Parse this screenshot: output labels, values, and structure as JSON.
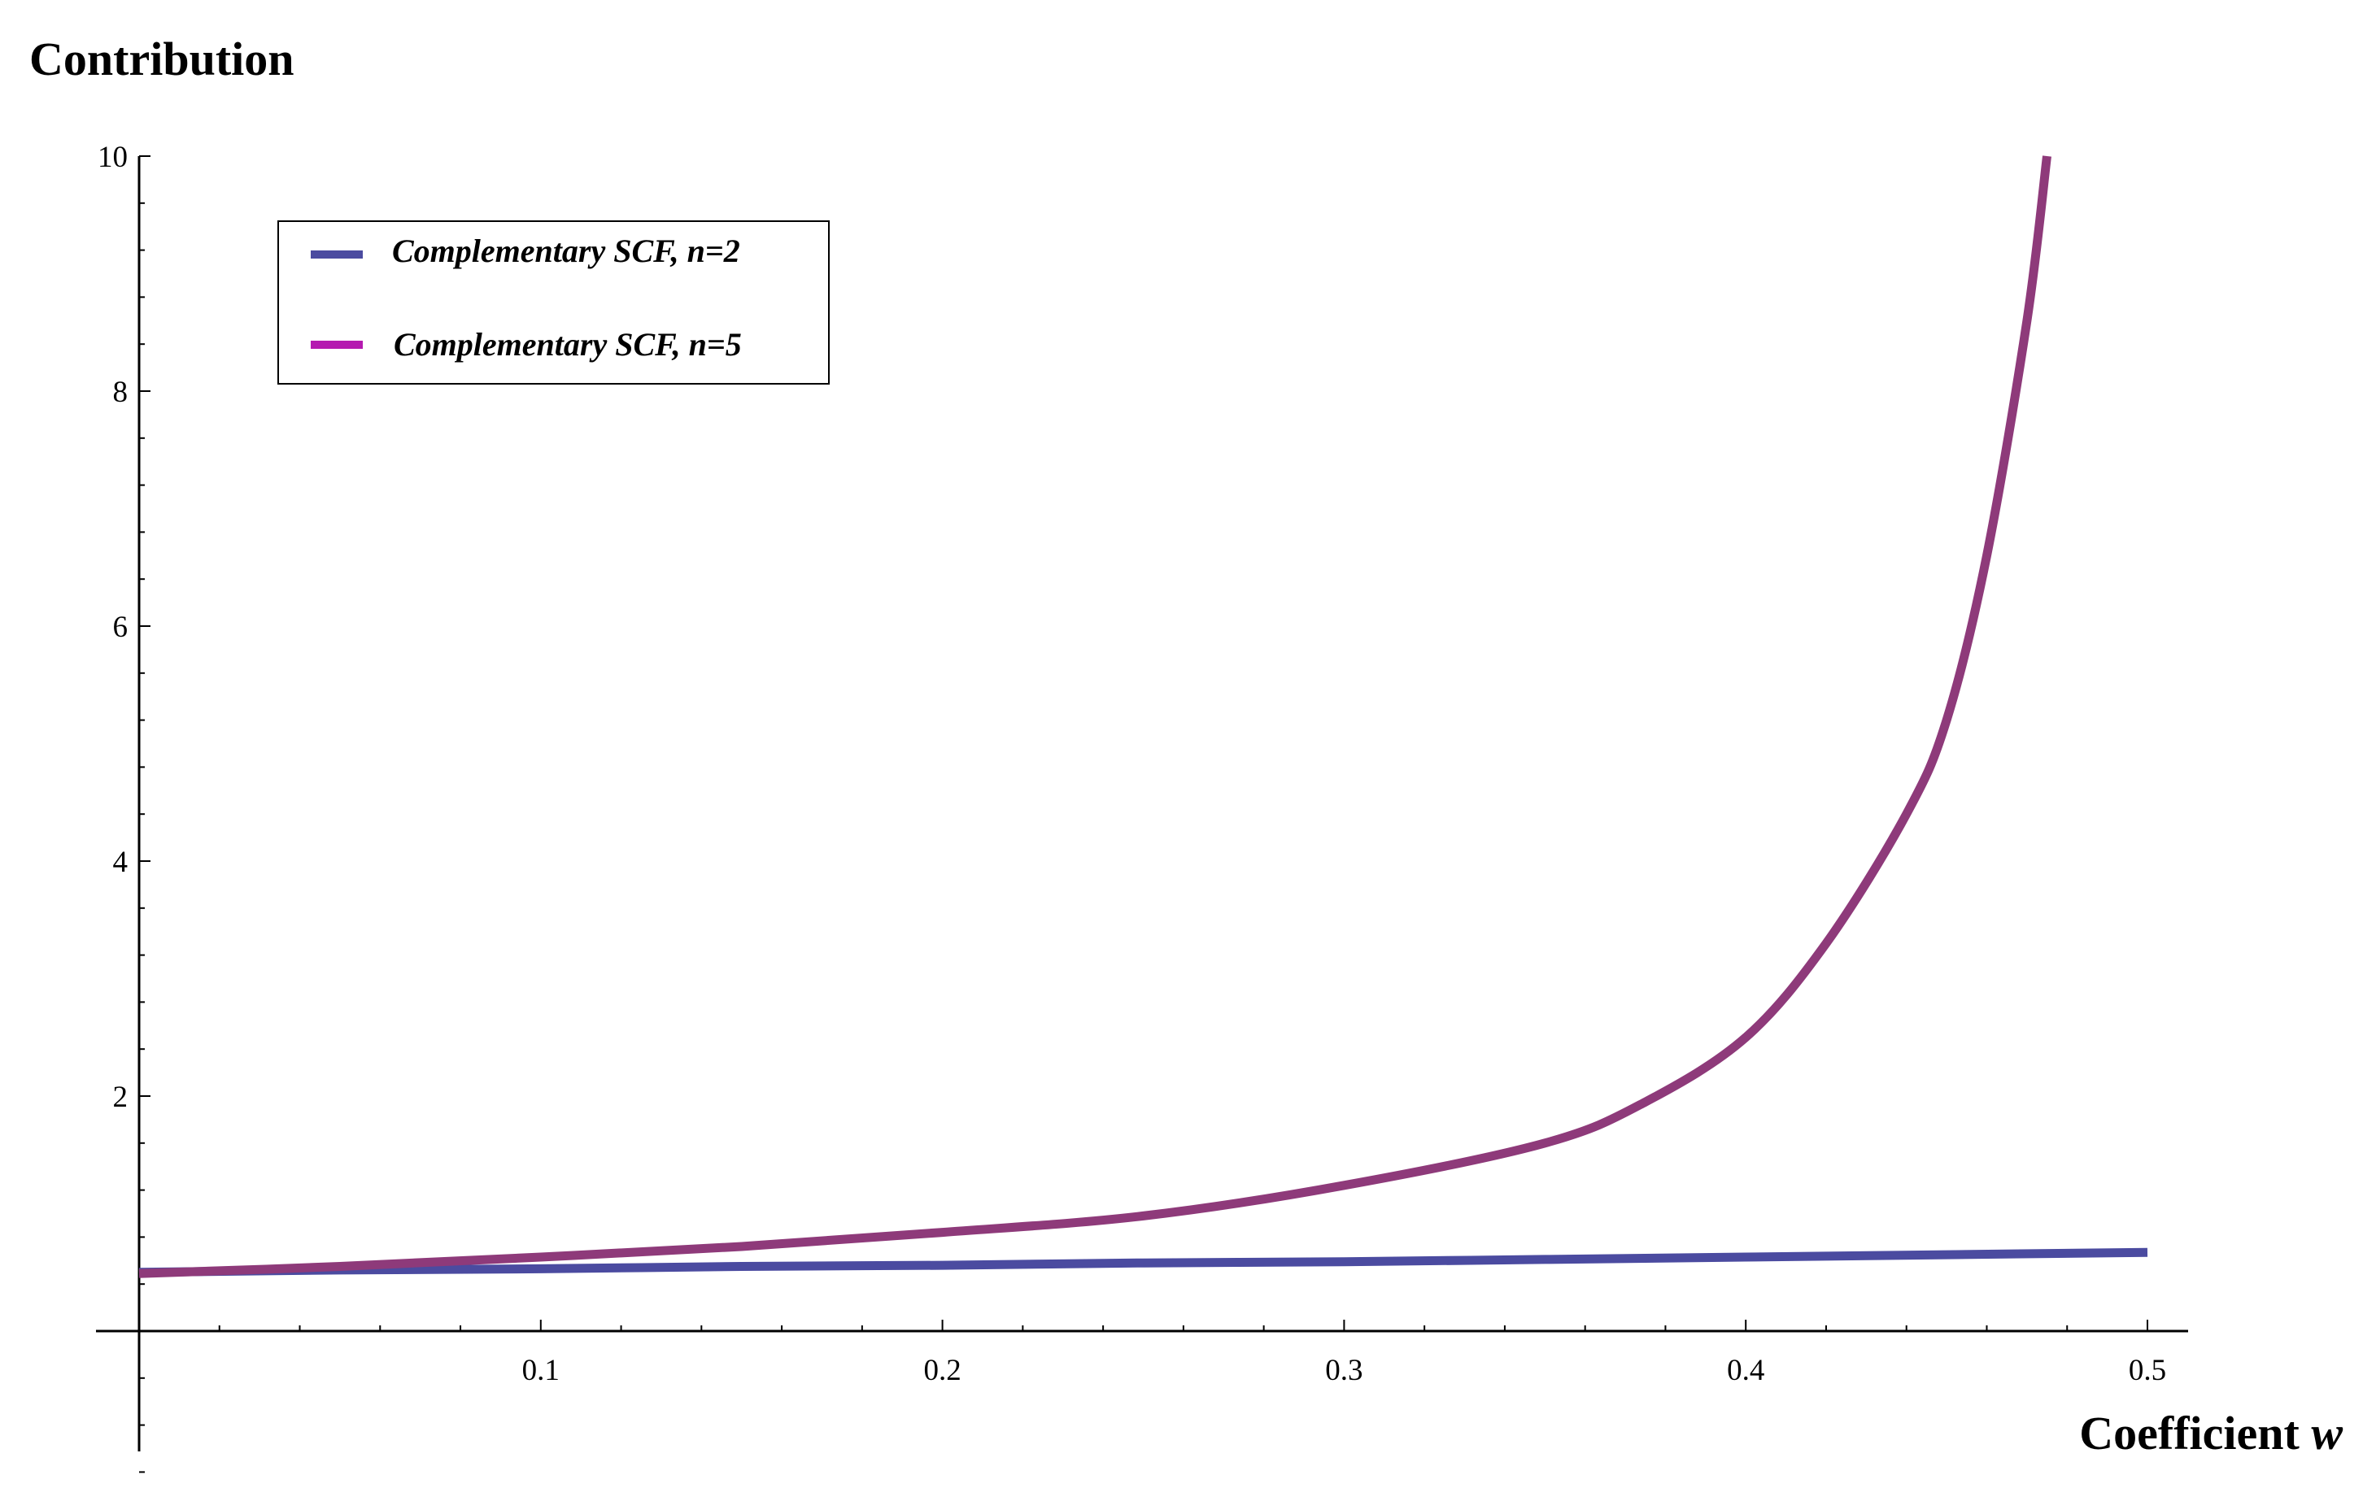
{
  "chart_data": {
    "type": "line",
    "title": "",
    "xlabel": "Coefficient",
    "xlabel_var": "w",
    "ylabel": "Contribution",
    "xlim": [
      0,
      0.5
    ],
    "ylim": [
      0,
      10
    ],
    "x_ticks": [
      "0.1",
      "0.2",
      "0.3",
      "0.4",
      "0.5"
    ],
    "y_ticks": [
      "2",
      "4",
      "6",
      "8",
      "10"
    ],
    "x_tick_values": [
      0.1,
      0.2,
      0.3,
      0.4,
      0.5
    ],
    "y_tick_values": [
      2,
      4,
      6,
      8,
      10
    ],
    "grid": false,
    "legend_position": "top-left",
    "series": [
      {
        "name": "Complementary SCF, n=2",
        "color": "#4b4ba0",
        "x": [
          0,
          0.05,
          0.1,
          0.15,
          0.2,
          0.25,
          0.3,
          0.35,
          0.4,
          0.45,
          0.5
        ],
        "y": [
          0.5,
          0.52,
          0.53,
          0.55,
          0.56,
          0.58,
          0.59,
          0.61,
          0.63,
          0.65,
          0.67
        ]
      },
      {
        "name": "Complementary SCF, n=5",
        "color": "#8e3a7a",
        "legend_color": "#b51ab0",
        "x": [
          0,
          0.05,
          0.1,
          0.15,
          0.2,
          0.25,
          0.3,
          0.35,
          0.375,
          0.4,
          0.42,
          0.44,
          0.45,
          0.46,
          0.47,
          0.475
        ],
        "y": [
          0.49,
          0.55,
          0.63,
          0.72,
          0.84,
          0.98,
          1.24,
          1.6,
          1.95,
          2.5,
          3.3,
          4.4,
          5.2,
          6.6,
          8.6,
          10.0
        ]
      }
    ]
  }
}
